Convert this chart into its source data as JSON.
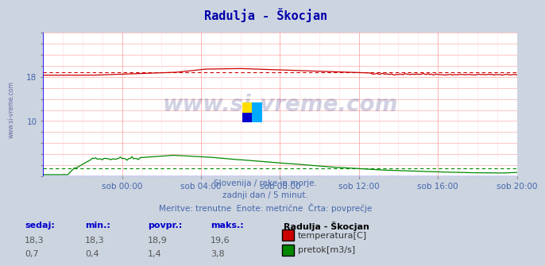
{
  "title": "Radulja - Škocjan",
  "title_color": "#0000aa",
  "bg_color": "#ccd4e0",
  "plot_bg_color": "#ffffff",
  "grid_color": "#ff9999",
  "grid_color_minor": "#ffdddd",
  "xlim": [
    0,
    288
  ],
  "ylim": [
    0,
    26
  ],
  "ytick_labels": [
    "",
    "",
    "",
    "",
    "",
    "10",
    "",
    "",
    "",
    "18",
    "",
    "",
    "",
    ""
  ],
  "ytick_vals": [
    0,
    2,
    4,
    6,
    8,
    10,
    12,
    14,
    16,
    18,
    20,
    22,
    24,
    26
  ],
  "xtick_labels": [
    "sob 00:00",
    "sob 04:00",
    "sob 08:00",
    "sob 12:00",
    "sob 16:00",
    "sob 20:00"
  ],
  "xtick_positions": [
    48,
    96,
    144,
    192,
    240,
    288
  ],
  "temp_color": "#cc0000",
  "flow_color": "#008800",
  "avg_temp": 18.9,
  "avg_flow": 1.4,
  "subtitle1": "Slovenija / reke in morje.",
  "subtitle2": "zadnji dan / 5 minut.",
  "subtitle3": "Meritve: trenutne  Enote: metrične  Črta: povprečje",
  "subtitle_color": "#4466aa",
  "watermark": "www.si-vreme.com",
  "watermark_color": "#000066",
  "left_label": "www.si-vreme.com",
  "table_headers": [
    "sedaj:",
    "min.:",
    "povpr.:",
    "maks.:"
  ],
  "table_header_color": "#0000cc",
  "station_label": "Radulja - Škocjan",
  "legend_temp": "temperatura[C]",
  "legend_flow": "pretok[m3/s]",
  "row_temp": [
    "18,3",
    "18,3",
    "18,9",
    "19,6"
  ],
  "row_flow": [
    "0,7",
    "0,4",
    "1,4",
    "3,8"
  ],
  "temp_legend_color": "#cc0000",
  "flow_legend_color": "#008800",
  "icon_colors": [
    "#ffdd00",
    "#00aaff",
    "#0000cc",
    "#00aaff"
  ]
}
